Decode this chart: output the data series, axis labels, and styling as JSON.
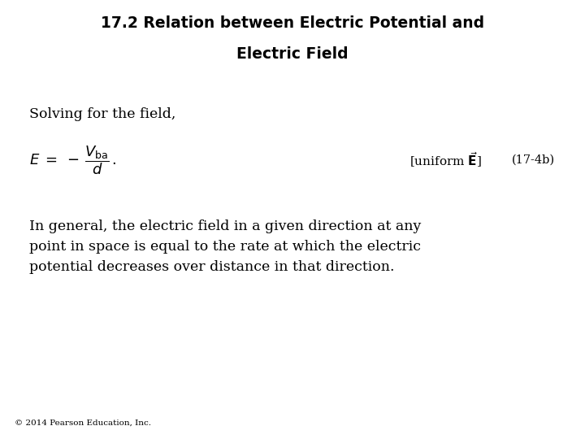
{
  "title_line1": "17.2 Relation between Electric Potential and",
  "title_line2": "Electric Field",
  "solving_text": "Solving for the field,",
  "equation_number": "(17-4b)",
  "body_text": "In general, the electric field in a given direction at any\npoint in space is equal to the rate at which the electric\npotential decreases over distance in that direction.",
  "footer_text": "© 2014 Pearson Education, Inc.",
  "bg_color": "#ffffff",
  "text_color": "#000000",
  "title_fontsize": 13.5,
  "body_fontsize": 12.5,
  "footer_fontsize": 7.5,
  "solving_fontsize": 12.5,
  "eq_fontsize": 13,
  "label_fontsize": 11,
  "eqnum_fontsize": 10.5
}
